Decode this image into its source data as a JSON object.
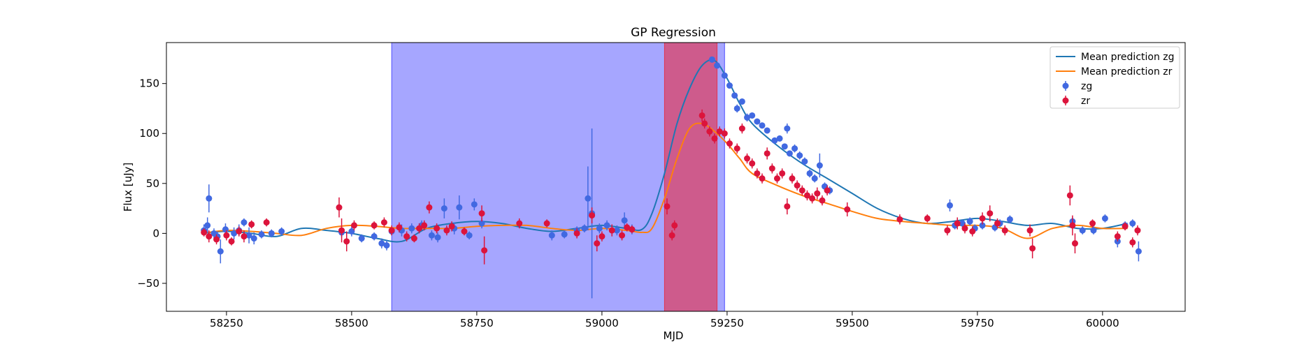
{
  "chart_data": {
    "type": "scatter",
    "title": "GP Regression",
    "xlabel": "MJD",
    "ylabel": "Flux [uJy]",
    "xlim": [
      58130,
      60165
    ],
    "ylim": [
      -78,
      191
    ],
    "xticks": [
      58250,
      58500,
      58750,
      59000,
      59250,
      59500,
      59750,
      60000
    ],
    "yticks": [
      -50,
      0,
      50,
      100,
      150
    ],
    "grid": false,
    "legend_position": "top-right",
    "shaded_regions": [
      {
        "x0": 58580,
        "x1": 59245,
        "color": "#0000ff",
        "opacity": 0.35
      },
      {
        "x0": 59125,
        "x1": 59230,
        "color": "#ff0000",
        "opacity": 0.45
      }
    ],
    "series": [
      {
        "name": "Mean prediction zg",
        "kind": "line",
        "color": "#1f77b4",
        "x": [
          58200,
          58250,
          58300,
          58350,
          58400,
          58450,
          58500,
          58550,
          58600,
          58650,
          58700,
          58750,
          58800,
          58850,
          58900,
          58950,
          59000,
          59050,
          59080,
          59100,
          59125,
          59150,
          59175,
          59200,
          59225,
          59250,
          59275,
          59300,
          59350,
          59400,
          59450,
          59500,
          59550,
          59600,
          59650,
          59700,
          59750,
          59800,
          59850,
          59900,
          59950,
          60000,
          60050
        ],
        "y": [
          0,
          2,
          0,
          -3,
          5,
          3,
          0,
          -5,
          -8,
          5,
          10,
          12,
          10,
          5,
          2,
          5,
          8,
          5,
          4,
          20,
          60,
          110,
          145,
          168,
          173,
          155,
          130,
          110,
          88,
          70,
          55,
          40,
          25,
          15,
          10,
          12,
          15,
          12,
          8,
          10,
          5,
          5,
          10
        ]
      },
      {
        "name": "Mean prediction zr",
        "kind": "line",
        "color": "#ff7f0e",
        "x": [
          58200,
          58250,
          58300,
          58350,
          58400,
          58450,
          58500,
          58550,
          58600,
          58650,
          58700,
          58750,
          58800,
          58850,
          58900,
          58950,
          59000,
          59050,
          59080,
          59100,
          59125,
          59150,
          59175,
          59200,
          59225,
          59250,
          59275,
          59300,
          59350,
          59400,
          59450,
          59500,
          59550,
          59600,
          59650,
          59700,
          59750,
          59800,
          59850,
          59900,
          59950,
          60000,
          60050
        ],
        "y": [
          0,
          3,
          2,
          0,
          -2,
          5,
          8,
          7,
          5,
          5,
          5,
          7,
          8,
          8,
          5,
          3,
          5,
          3,
          1,
          5,
          35,
          75,
          105,
          110,
          102,
          90,
          75,
          60,
          48,
          38,
          30,
          22,
          15,
          12,
          10,
          8,
          8,
          5,
          -5,
          5,
          8,
          5,
          5
        ]
      },
      {
        "name": "zg",
        "kind": "scatter",
        "color": "#4169e1",
        "points": [
          [
            58205,
            3,
            6
          ],
          [
            58212,
            8,
            8
          ],
          [
            58215,
            35,
            14
          ],
          [
            58225,
            0,
            5
          ],
          [
            58232,
            -3,
            5
          ],
          [
            58238,
            -18,
            12
          ],
          [
            58248,
            4,
            6
          ],
          [
            58265,
            0,
            6
          ],
          [
            58275,
            3,
            6
          ],
          [
            58285,
            11,
            4
          ],
          [
            58295,
            -2,
            8
          ],
          [
            58305,
            -5,
            6
          ],
          [
            58320,
            -1,
            4
          ],
          [
            58340,
            0,
            4
          ],
          [
            58360,
            2,
            4
          ],
          [
            58480,
            1,
            5
          ],
          [
            58500,
            2,
            5
          ],
          [
            58520,
            -5,
            4
          ],
          [
            58545,
            -3,
            4
          ],
          [
            58560,
            -10,
            5
          ],
          [
            58570,
            -12,
            5
          ],
          [
            58580,
            2,
            4
          ],
          [
            58600,
            3,
            6
          ],
          [
            58620,
            5,
            5
          ],
          [
            58640,
            8,
            5
          ],
          [
            58660,
            -2,
            5
          ],
          [
            58672,
            -4,
            5
          ],
          [
            58685,
            25,
            10
          ],
          [
            58705,
            5,
            6
          ],
          [
            58715,
            26,
            12
          ],
          [
            58735,
            -2,
            4
          ],
          [
            58745,
            29,
            6
          ],
          [
            58760,
            10,
            5
          ],
          [
            58900,
            -2,
            5
          ],
          [
            58925,
            -1,
            4
          ],
          [
            58950,
            3,
            4
          ],
          [
            58965,
            5,
            4
          ],
          [
            58972,
            35,
            32
          ],
          [
            58980,
            20,
            85
          ],
          [
            58995,
            5,
            5
          ],
          [
            59010,
            8,
            5
          ],
          [
            59030,
            3,
            5
          ],
          [
            59045,
            13,
            8
          ],
          [
            59060,
            4,
            5
          ],
          [
            59220,
            174,
            3
          ],
          [
            59230,
            168,
            3
          ],
          [
            59245,
            158,
            3
          ],
          [
            59255,
            148,
            3
          ],
          [
            59265,
            138,
            3
          ],
          [
            59270,
            125,
            4
          ],
          [
            59280,
            132,
            3
          ],
          [
            59290,
            116,
            4
          ],
          [
            59300,
            118,
            3
          ],
          [
            59310,
            112,
            3
          ],
          [
            59320,
            108,
            3
          ],
          [
            59330,
            103,
            3
          ],
          [
            59345,
            93,
            3
          ],
          [
            59355,
            95,
            3
          ],
          [
            59365,
            87,
            3
          ],
          [
            59370,
            105,
            5
          ],
          [
            59375,
            80,
            3
          ],
          [
            59385,
            85,
            4
          ],
          [
            59395,
            78,
            4
          ],
          [
            59405,
            72,
            4
          ],
          [
            59415,
            60,
            4
          ],
          [
            59425,
            55,
            4
          ],
          [
            59435,
            68,
            12
          ],
          [
            59445,
            47,
            4
          ],
          [
            59455,
            43,
            4
          ],
          [
            59695,
            28,
            6
          ],
          [
            59705,
            8,
            4
          ],
          [
            59720,
            10,
            4
          ],
          [
            59735,
            12,
            4
          ],
          [
            59745,
            5,
            4
          ],
          [
            59760,
            8,
            4
          ],
          [
            59785,
            6,
            4
          ],
          [
            59795,
            10,
            4
          ],
          [
            59815,
            14,
            4
          ],
          [
            59940,
            12,
            4
          ],
          [
            59960,
            3,
            4
          ],
          [
            59982,
            3,
            4
          ],
          [
            60005,
            15,
            4
          ],
          [
            60030,
            -8,
            6
          ],
          [
            60045,
            8,
            4
          ],
          [
            60060,
            10,
            4
          ],
          [
            60072,
            -18,
            10
          ]
        ]
      },
      {
        "name": "zr",
        "kind": "scatter",
        "color": "#dc143c",
        "points": [
          [
            58205,
            1,
            4
          ],
          [
            58215,
            -3,
            6
          ],
          [
            58230,
            -6,
            5
          ],
          [
            58250,
            -2,
            5
          ],
          [
            58260,
            -8,
            4
          ],
          [
            58275,
            2,
            5
          ],
          [
            58285,
            -3,
            6
          ],
          [
            58300,
            9,
            4
          ],
          [
            58330,
            11,
            4
          ],
          [
            58475,
            26,
            10
          ],
          [
            58480,
            3,
            12
          ],
          [
            58490,
            -8,
            10
          ],
          [
            58505,
            8,
            5
          ],
          [
            58545,
            8,
            4
          ],
          [
            58565,
            11,
            5
          ],
          [
            58580,
            3,
            5
          ],
          [
            58595,
            6,
            5
          ],
          [
            58610,
            -3,
            5
          ],
          [
            58625,
            -5,
            4
          ],
          [
            58635,
            5,
            5
          ],
          [
            58645,
            8,
            5
          ],
          [
            58655,
            26,
            6
          ],
          [
            58670,
            5,
            5
          ],
          [
            58690,
            3,
            5
          ],
          [
            58700,
            7,
            5
          ],
          [
            58725,
            2,
            4
          ],
          [
            58760,
            20,
            8
          ],
          [
            58765,
            -17,
            14
          ],
          [
            58835,
            10,
            5
          ],
          [
            58890,
            10,
            4
          ],
          [
            58950,
            0,
            5
          ],
          [
            58980,
            18,
            8
          ],
          [
            58990,
            -10,
            8
          ],
          [
            59000,
            -3,
            5
          ],
          [
            59020,
            3,
            6
          ],
          [
            59040,
            -2,
            5
          ],
          [
            59050,
            6,
            4
          ],
          [
            59060,
            4,
            4
          ],
          [
            59130,
            27,
            8
          ],
          [
            59140,
            -2,
            5
          ],
          [
            59145,
            8,
            5
          ],
          [
            59200,
            118,
            6
          ],
          [
            59205,
            110,
            5
          ],
          [
            59215,
            102,
            5
          ],
          [
            59225,
            95,
            5
          ],
          [
            59235,
            102,
            5
          ],
          [
            59245,
            100,
            5
          ],
          [
            59255,
            90,
            5
          ],
          [
            59270,
            85,
            5
          ],
          [
            59280,
            105,
            5
          ],
          [
            59290,
            75,
            5
          ],
          [
            59300,
            70,
            5
          ],
          [
            59310,
            60,
            5
          ],
          [
            59320,
            55,
            5
          ],
          [
            59330,
            80,
            6
          ],
          [
            59340,
            65,
            5
          ],
          [
            59350,
            55,
            5
          ],
          [
            59360,
            60,
            5
          ],
          [
            59370,
            27,
            8
          ],
          [
            59380,
            55,
            5
          ],
          [
            59390,
            48,
            5
          ],
          [
            59400,
            43,
            5
          ],
          [
            59410,
            38,
            5
          ],
          [
            59420,
            35,
            5
          ],
          [
            59430,
            40,
            6
          ],
          [
            59440,
            33,
            5
          ],
          [
            59450,
            43,
            5
          ],
          [
            59490,
            24,
            7
          ],
          [
            59595,
            14,
            5
          ],
          [
            59650,
            15,
            4
          ],
          [
            59690,
            3,
            5
          ],
          [
            59710,
            10,
            6
          ],
          [
            59725,
            5,
            5
          ],
          [
            59740,
            2,
            5
          ],
          [
            59760,
            15,
            6
          ],
          [
            59775,
            20,
            8
          ],
          [
            59790,
            10,
            5
          ],
          [
            59805,
            3,
            5
          ],
          [
            59855,
            3,
            6
          ],
          [
            59860,
            -15,
            10
          ],
          [
            59935,
            38,
            10
          ],
          [
            59940,
            8,
            10
          ],
          [
            59945,
            -10,
            10
          ],
          [
            59980,
            10,
            4
          ],
          [
            60030,
            -3,
            5
          ],
          [
            60045,
            7,
            4
          ],
          [
            60060,
            -9,
            5
          ],
          [
            60070,
            3,
            5
          ]
        ]
      }
    ]
  }
}
